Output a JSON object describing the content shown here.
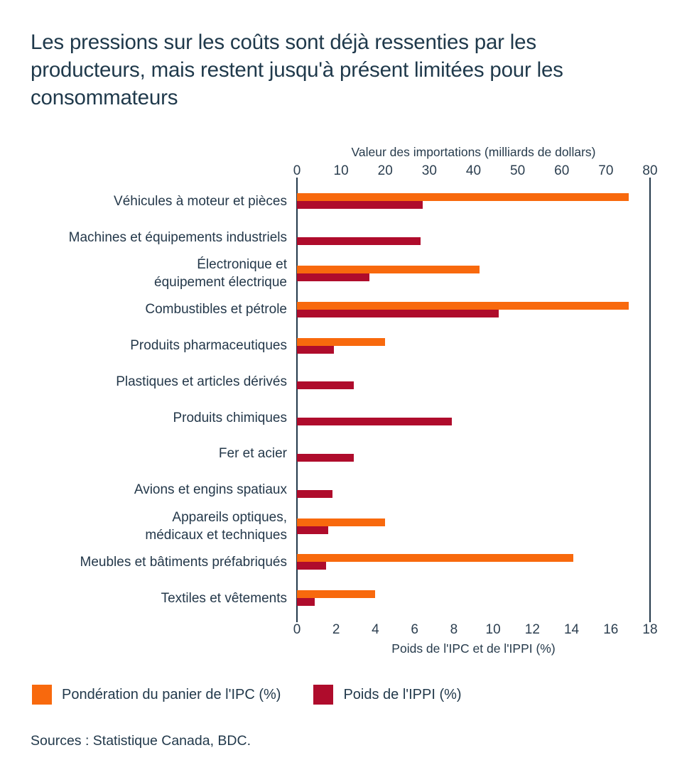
{
  "title": "Les pressions sur les coûts sont déjà ressenties par les producteurs, mais restent jusqu'à présent limitées pour les consommateurs",
  "source": "Sources : Statistique Canada, BDC.",
  "colors": {
    "ipc_orange": "#F8690D",
    "ippi_red": "#AF0C2C",
    "text_navy": "#1F394B",
    "axis_navy": "#24394B"
  },
  "chart_data": {
    "type": "bar",
    "orientation": "horizontal",
    "grid": false,
    "top_axis": {
      "label": "Valeur des importations (milliards de dollars)",
      "ticks": [
        0,
        10,
        20,
        30,
        40,
        50,
        60,
        70,
        80
      ],
      "range": [
        0,
        80
      ]
    },
    "bottom_axis": {
      "label": "Poids de l'IPC et de l'IPPI (%)",
      "ticks": [
        0,
        2,
        4,
        6,
        8,
        10,
        12,
        14,
        16,
        18
      ],
      "range": [
        0,
        18
      ]
    },
    "legend_position": "bottom-left",
    "series": [
      {
        "name": "Pondération du panier de l'IPC (%)",
        "color": "#F8690D",
        "key": "ipc"
      },
      {
        "name": "Poids de l'IPPI (%)",
        "color": "#AF0C2C",
        "key": "ippi"
      }
    ],
    "categories": [
      "Véhicules à moteur et pièces",
      "Machines et équipements industriels",
      "Électronique et\néquipement électrique",
      "Combustibles et pétrole",
      "Produits pharmaceutiques",
      "Plastiques et articles dérivés",
      "Produits chimiques",
      "Fer et acier",
      "Avions et engins spatiaux",
      "Appareils optiques,\nmédicaux et techniques",
      "Meubles et bâtiments préfabriqués",
      "Textiles et vêtements"
    ],
    "rows": [
      {
        "label": "Véhicules à moteur et pièces",
        "ipc": 16.9,
        "ippi": 6.4
      },
      {
        "label": "Machines et équipements industriels",
        "ipc": null,
        "ippi": 6.3
      },
      {
        "label": "Électronique et\néquipement électrique",
        "ipc": 9.3,
        "ippi": 3.7
      },
      {
        "label": "Combustibles et pétrole",
        "ipc": 16.9,
        "ippi": 10.3
      },
      {
        "label": "Produits pharmaceutiques",
        "ipc": 4.5,
        "ippi": 1.9
      },
      {
        "label": "Plastiques et articles dérivés",
        "ipc": null,
        "ippi": 2.9
      },
      {
        "label": "Produits chimiques",
        "ipc": null,
        "ippi": 7.9
      },
      {
        "label": "Fer et acier",
        "ipc": null,
        "ippi": 2.9
      },
      {
        "label": "Avions et engins spatiaux",
        "ipc": null,
        "ippi": 1.8
      },
      {
        "label": "Appareils optiques,\nmédicaux et techniques",
        "ipc": 4.5,
        "ippi": 1.6
      },
      {
        "label": "Meubles et bâtiments préfabriqués",
        "ipc": 14.1,
        "ippi": 1.5
      },
      {
        "label": "Textiles et vêtements",
        "ipc": 4.0,
        "ippi": 0.9
      }
    ]
  }
}
